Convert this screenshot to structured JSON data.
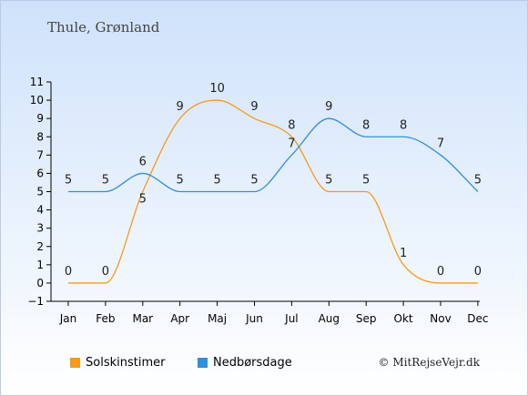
{
  "title": "Thule, Grønland",
  "copyright": "© MitRejseVejr.dk",
  "chart_data": {
    "type": "line",
    "categories": [
      "Jan",
      "Feb",
      "Mar",
      "Apr",
      "Maj",
      "Jun",
      "Jul",
      "Aug",
      "Sep",
      "Okt",
      "Nov",
      "Dec"
    ],
    "ylim": [
      -1,
      11
    ],
    "yticks": [
      -1,
      0,
      1,
      2,
      3,
      4,
      5,
      6,
      7,
      8,
      9,
      10,
      11
    ],
    "grid": false,
    "legend_position": "bottom",
    "series": [
      {
        "name": "Solskinstimer",
        "color": "#f59a1b",
        "values": [
          0,
          0,
          5,
          9,
          10,
          9,
          8,
          5,
          5,
          1,
          0,
          0
        ]
      },
      {
        "name": "Nedbørsdage",
        "color": "#2e8fdc",
        "values": [
          5,
          5,
          6,
          5,
          5,
          5,
          7,
          9,
          8,
          8,
          7,
          5
        ]
      }
    ]
  }
}
